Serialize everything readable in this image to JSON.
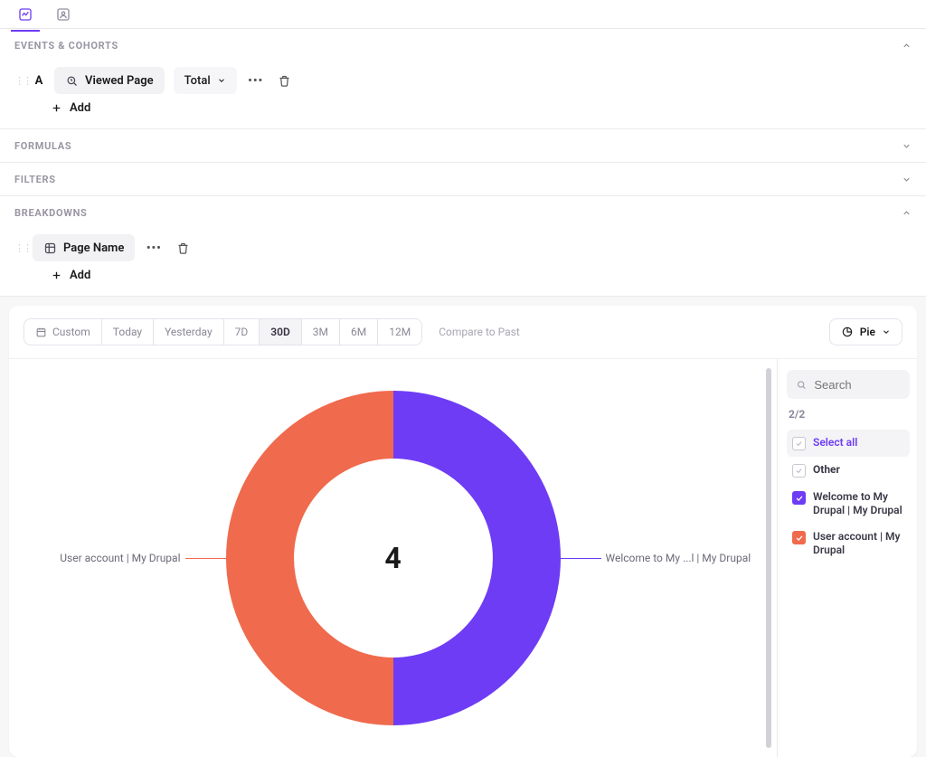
{
  "tabs": {
    "active_index": 0
  },
  "sections": {
    "events_cohorts": {
      "title": "EVENTS & COHORTS",
      "expanded": true,
      "series_letter": "A",
      "event_name": "Viewed Page",
      "measure": "Total",
      "add_label": "Add"
    },
    "formulas": {
      "title": "FORMULAS",
      "expanded": false
    },
    "filters": {
      "title": "FILTERS",
      "expanded": false
    },
    "breakdowns": {
      "title": "BREAKDOWNS",
      "expanded": true,
      "property_name": "Page Name",
      "add_label": "Add"
    }
  },
  "range": {
    "custom_label": "Custom",
    "options": [
      "Today",
      "Yesterday",
      "7D",
      "30D",
      "3M",
      "6M",
      "12M"
    ],
    "active": "30D",
    "compare_label": "Compare to Past"
  },
  "vis": {
    "label": "Pie"
  },
  "chart": {
    "type": "donut",
    "center_value": "4",
    "center_fontsize": 32,
    "outer_radius": 185,
    "inner_radius": 110,
    "background_color": "#ffffff",
    "slices": [
      {
        "label": "Welcome to My ...l | My Drupal",
        "value": 2,
        "fraction": 0.5,
        "color": "#6e3cf5",
        "side": "right"
      },
      {
        "label": "User account | My Drupal",
        "value": 2,
        "fraction": 0.5,
        "color": "#f06a4d",
        "side": "left"
      }
    ]
  },
  "legend": {
    "search_placeholder": "Search",
    "count": "2/2",
    "select_all_label": "Select all",
    "other_label": "Other",
    "items": [
      {
        "label": "Welcome to My Drupal | My Drupal",
        "checked": true,
        "color": "#6e3cf5"
      },
      {
        "label": "User account | My Drupal",
        "checked": true,
        "color": "#f06a4d"
      }
    ]
  }
}
